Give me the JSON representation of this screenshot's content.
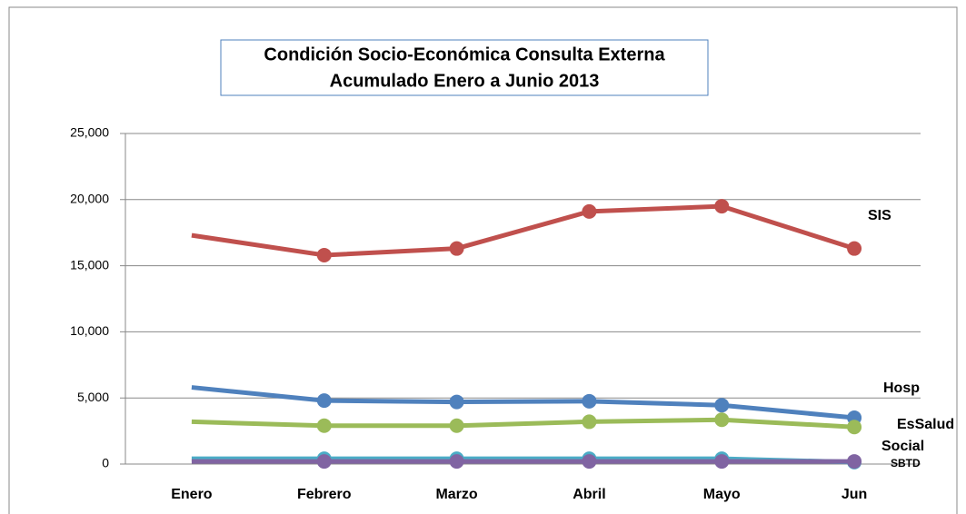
{
  "chart_data": {
    "type": "line",
    "title_lines": [
      "Condición Socio-Económica Consulta Externa",
      "Acumulado Enero a Junio 2013"
    ],
    "categories": [
      "Enero",
      "Febrero",
      "Marzo",
      "Abril",
      "Mayo",
      "Jun"
    ],
    "series": [
      {
        "name": "SIS",
        "color": "#c0504d",
        "values": [
          17300,
          15800,
          16300,
          19100,
          19500,
          16300
        ]
      },
      {
        "name": "Hosp",
        "color": "#4f81bd",
        "values": [
          5800,
          4800,
          4700,
          4750,
          4450,
          3500
        ]
      },
      {
        "name": "EsSalud",
        "color": "#9bbb59",
        "values": [
          3200,
          2900,
          2900,
          3200,
          3350,
          2800
        ]
      },
      {
        "name": "Social",
        "color": "#4bacc6",
        "values": [
          400,
          400,
          400,
          400,
          400,
          150
        ]
      },
      {
        "name": "SBTD",
        "color": "#8064a2",
        "values": [
          200,
          200,
          200,
          200,
          200,
          200
        ]
      }
    ],
    "ylim": [
      0,
      25000
    ],
    "yticks": [
      {
        "value": 0,
        "label": "0"
      },
      {
        "value": 5000,
        "label": "5,000"
      },
      {
        "value": 10000,
        "label": "10,000"
      },
      {
        "value": 15000,
        "label": "15,000"
      },
      {
        "value": 20000,
        "label": "20,000"
      },
      {
        "value": 25000,
        "label": "25,000"
      }
    ],
    "grid": true
  }
}
